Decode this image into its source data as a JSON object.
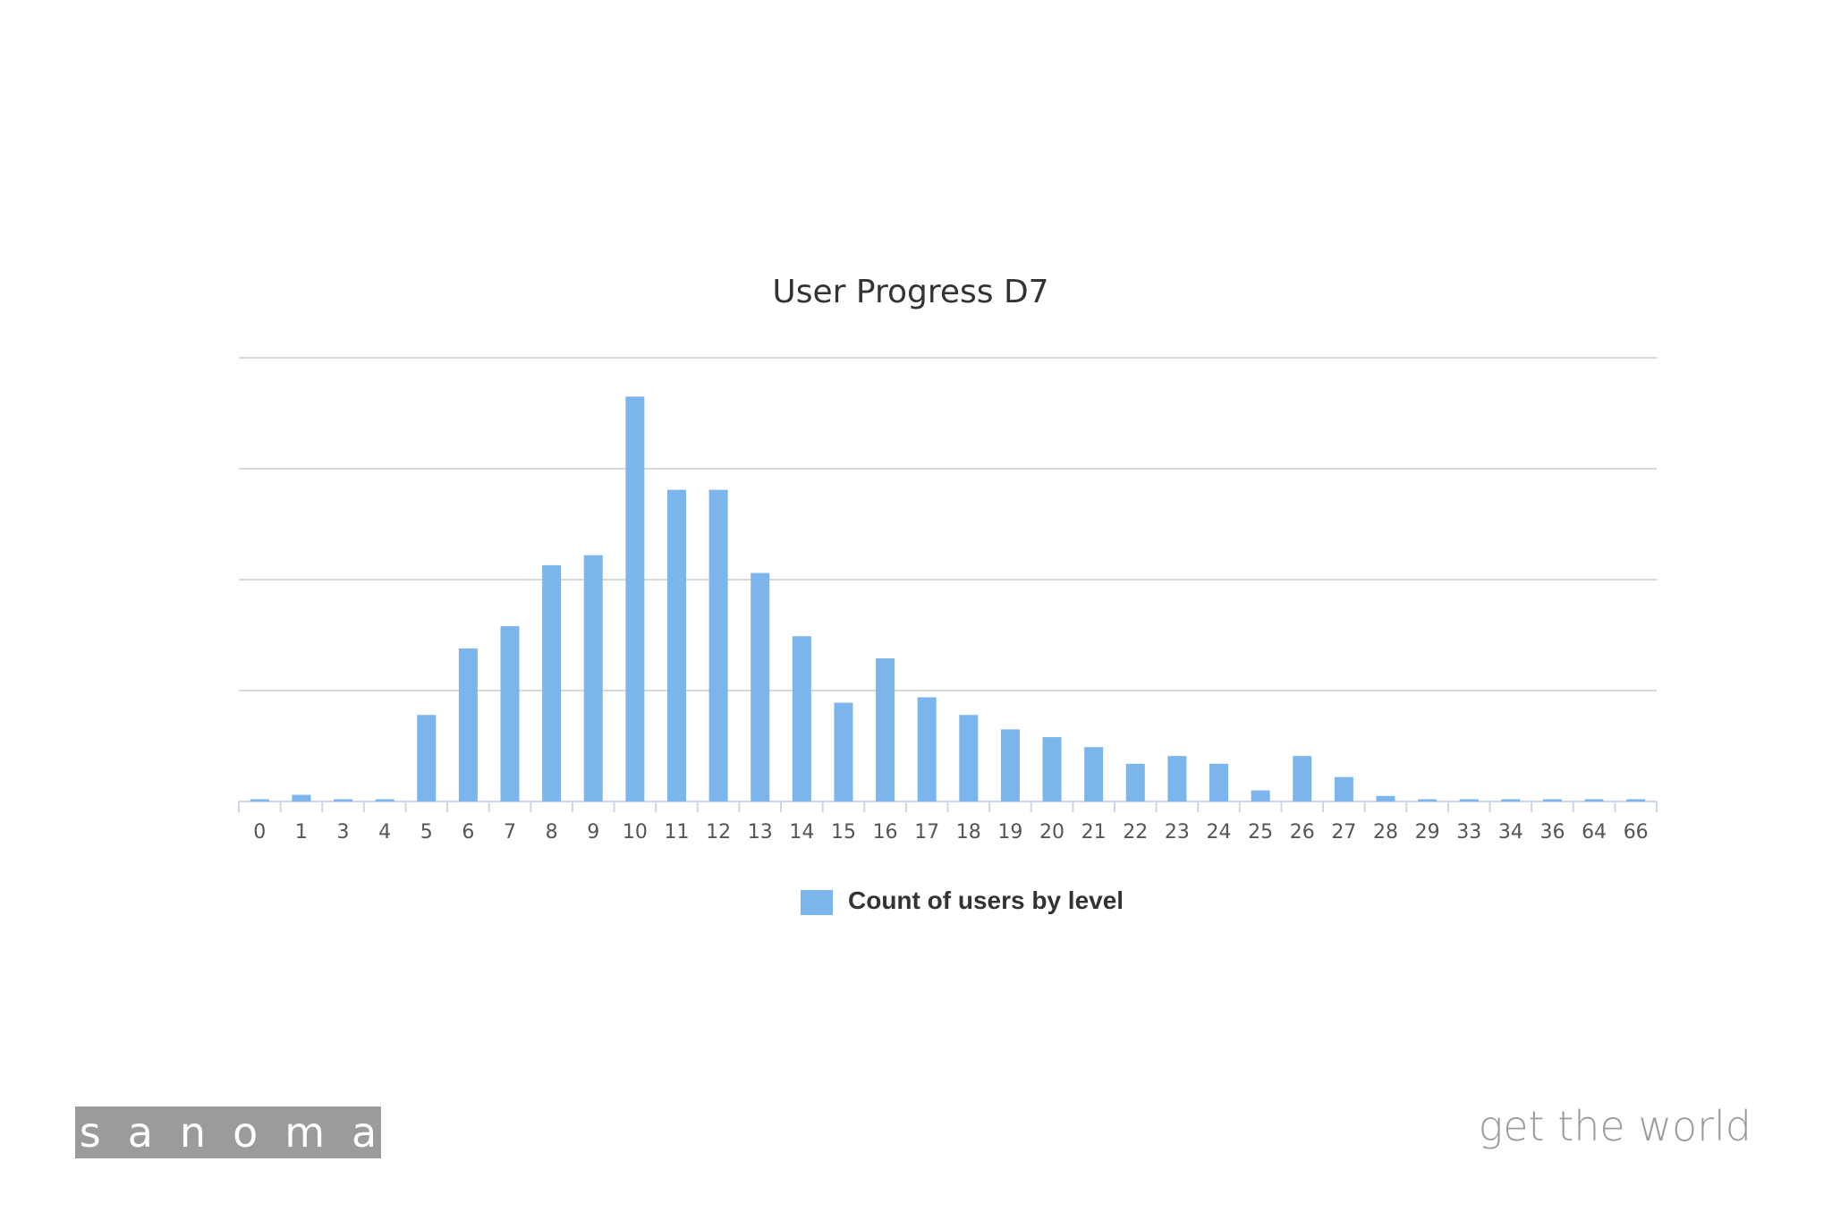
{
  "chart_data": {
    "type": "bar",
    "title": "User Progress D7",
    "categories": [
      "0",
      "1",
      "3",
      "4",
      "5",
      "6",
      "7",
      "8",
      "9",
      "10",
      "11",
      "12",
      "13",
      "14",
      "15",
      "16",
      "17",
      "18",
      "19",
      "20",
      "21",
      "22",
      "23",
      "24",
      "25",
      "26",
      "27",
      "28",
      "29",
      "33",
      "34",
      "36",
      "64",
      "66"
    ],
    "series": [
      {
        "name": "Count of users by level",
        "values": [
          2,
          6,
          2,
          2,
          78,
          138,
          158,
          213,
          222,
          365,
          281,
          281,
          206,
          149,
          89,
          129,
          94,
          78,
          65,
          58,
          49,
          34,
          41,
          34,
          10,
          41,
          22,
          5,
          2,
          2,
          2,
          2,
          2,
          2
        ]
      }
    ],
    "xlabel": "",
    "ylabel": "",
    "ylim": [
      0,
      400
    ],
    "y_gridlines": [
      0,
      100,
      200,
      300,
      400
    ],
    "grid": true,
    "legend_position": "bottom-center",
    "bar_color": "#7cb5ec"
  },
  "branding": {
    "logo_text": "sanoma",
    "tagline": "get the world",
    "logo_color": "#9b9b9c"
  }
}
